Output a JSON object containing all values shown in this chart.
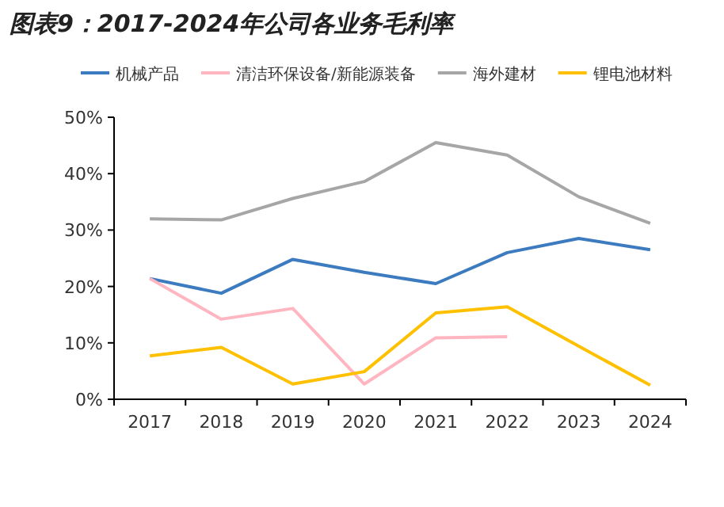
{
  "chart_data": {
    "type": "line",
    "title": "图表9：2017-2024年公司各业务毛利率",
    "categories": [
      "2017",
      "2018",
      "2019",
      "2020",
      "2021",
      "2022",
      "2023",
      "2024"
    ],
    "series": [
      {
        "name": "机械产品",
        "color": "#3c7bbf",
        "values": [
          21.4,
          18.8,
          24.8,
          22.5,
          20.5,
          26.0,
          28.5,
          26.5
        ]
      },
      {
        "name": "清洁环保设备/新能源装备",
        "color": "#ffb6c1",
        "values": [
          21.4,
          14.2,
          16.1,
          2.7,
          10.9,
          11.1,
          null,
          null
        ]
      },
      {
        "name": "海外建材",
        "color": "#a6a6a6",
        "values": [
          32.0,
          31.8,
          35.6,
          38.6,
          45.5,
          43.3,
          35.9,
          31.2
        ]
      },
      {
        "name": "锂电池材料",
        "color": "#ffc000",
        "values": [
          7.7,
          9.2,
          2.7,
          4.9,
          15.3,
          16.4,
          9.4,
          2.5
        ]
      }
    ],
    "ylim": [
      0,
      50
    ],
    "yticks": [
      {
        "value": 0,
        "label": "0%"
      },
      {
        "value": 10,
        "label": "10%"
      },
      {
        "value": 20,
        "label": "20%"
      },
      {
        "value": 30,
        "label": "30%"
      },
      {
        "value": 40,
        "label": "40%"
      },
      {
        "value": 50,
        "label": "50%"
      }
    ],
    "legend": "top",
    "grid": false,
    "marker": "none",
    "line_style": "solid"
  }
}
